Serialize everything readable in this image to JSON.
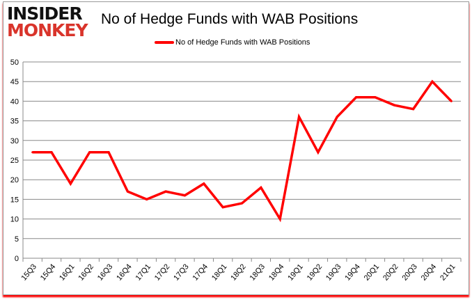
{
  "logo": {
    "line1": "INSIDER",
    "line2": "MONKEY"
  },
  "chart_data": {
    "type": "line",
    "title": "No of Hedge Funds with WAB Positions",
    "categories": [
      "15Q3",
      "15Q4",
      "16Q1",
      "16Q2",
      "16Q3",
      "16Q4",
      "17Q1",
      "17Q2",
      "17Q3",
      "17Q4",
      "18Q1",
      "18Q2",
      "18Q3",
      "18Q4",
      "19Q1",
      "19Q2",
      "19Q3",
      "19Q4",
      "20Q1",
      "20Q2",
      "20Q3",
      "20Q4",
      "21Q1"
    ],
    "series": [
      {
        "name": "No of Hedge Funds with WAB Positions",
        "color": "#ff0000",
        "values": [
          27,
          27,
          19,
          27,
          27,
          17,
          15,
          17,
          16,
          19,
          13,
          14,
          18,
          10,
          36,
          27,
          36,
          41,
          41,
          39,
          38,
          45,
          40
        ]
      }
    ],
    "ylim": [
      0,
      50
    ],
    "yticks": [
      0,
      5,
      10,
      15,
      20,
      25,
      30,
      35,
      40,
      45,
      50
    ],
    "grid": true,
    "legend": "top"
  }
}
